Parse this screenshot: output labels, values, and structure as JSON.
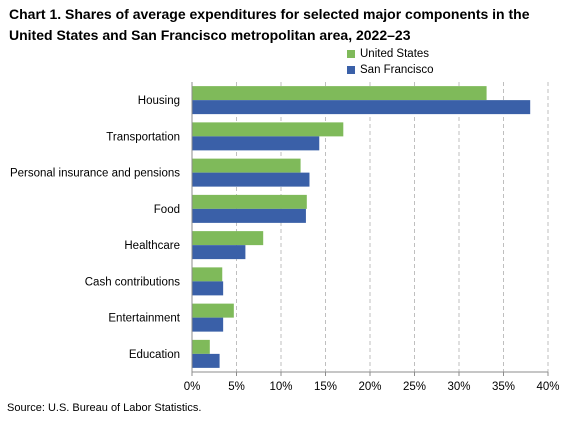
{
  "title": "Chart 1. Shares of average expenditures for selected major components in the United States and San Francisco metropolitan area, 2022–23",
  "source": "Source: U.S. Bureau of Labor Statistics.",
  "colors": {
    "us": "#7fba5a",
    "sf": "#3a60a8",
    "grid": "#bfbfbf",
    "axis": "#8c8c8c"
  },
  "legend": [
    {
      "label": "United States",
      "color": "#7fba5a"
    },
    {
      "label": "San Francisco",
      "color": "#3a60a8"
    }
  ],
  "chart_data": {
    "type": "bar",
    "orientation": "horizontal",
    "title": "Chart 1. Shares of average expenditures for selected major components in the United States and San Francisco metropolitan area, 2022–23",
    "xlabel": "",
    "ylabel": "",
    "xlim": [
      0,
      40
    ],
    "x_ticks": [
      "0%",
      "5%",
      "10%",
      "15%",
      "20%",
      "25%",
      "30%",
      "35%",
      "40%"
    ],
    "grid": "vertical dashed",
    "legend_position": "top-right",
    "categories": [
      "Housing",
      "Transportation",
      "Personal insurance and pensions",
      "Food",
      "Healthcare",
      "Cash contributions",
      "Entertainment",
      "Education"
    ],
    "series": [
      {
        "name": "United States",
        "values": [
          33.1,
          17.0,
          12.2,
          12.9,
          8.0,
          3.4,
          4.7,
          2.0
        ]
      },
      {
        "name": "San Francisco",
        "values": [
          38.0,
          14.3,
          13.2,
          12.8,
          6.0,
          3.5,
          3.5,
          3.1
        ]
      }
    ]
  }
}
